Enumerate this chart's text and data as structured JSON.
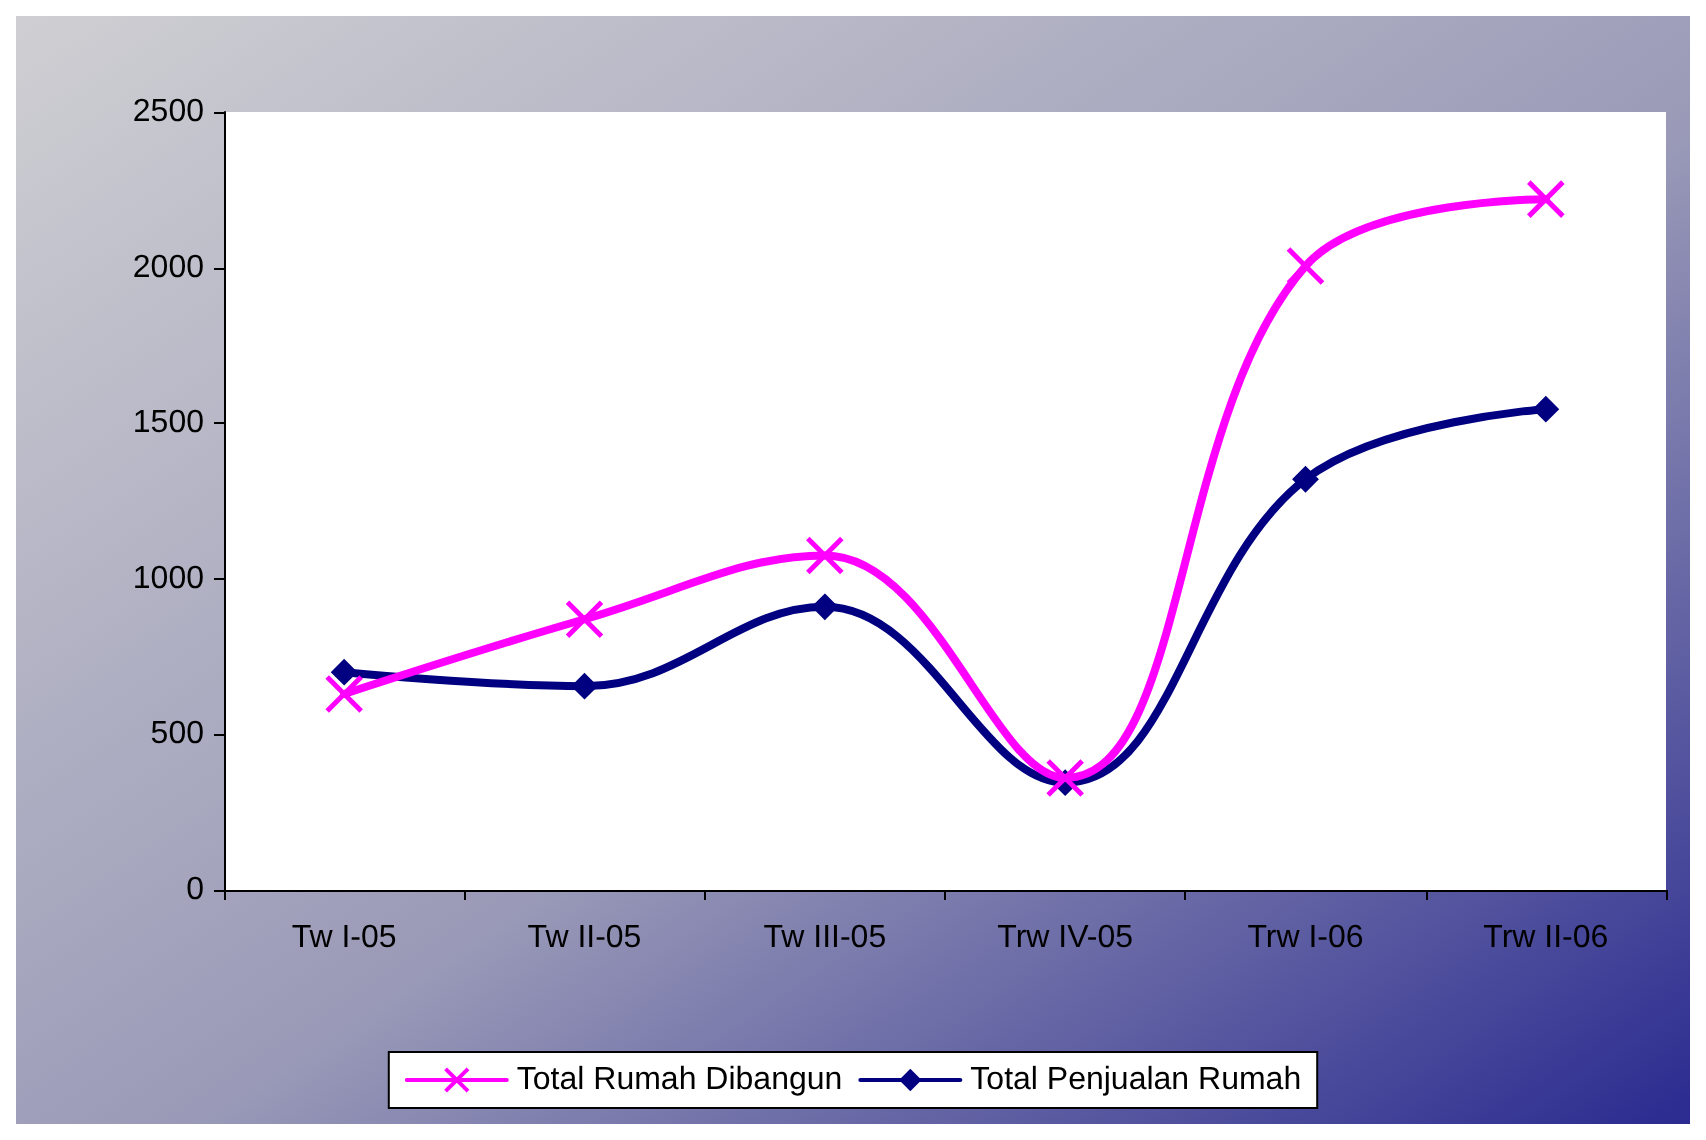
{
  "chart_data": {
    "type": "line",
    "categories": [
      "Tw I-05",
      "Tw II-05",
      "Tw III-05",
      "Trw IV-05",
      "Trw I-06",
      "Trw II-06"
    ],
    "series": [
      {
        "name": "Total Rumah Dibangun",
        "color": "#ff00ff",
        "marker": "cross",
        "values": [
          630,
          870,
          1075,
          360,
          2005,
          2220
        ]
      },
      {
        "name": "Total Penjualan Rumah",
        "color": "#000080",
        "marker": "diamond",
        "values": [
          700,
          655,
          910,
          345,
          1320,
          1545
        ]
      }
    ],
    "ylim": [
      0,
      2500
    ],
    "yticks": [
      0,
      500,
      1000,
      1500,
      2000,
      2500
    ],
    "grid": false,
    "legend": "bottom",
    "line_style": "solid"
  }
}
